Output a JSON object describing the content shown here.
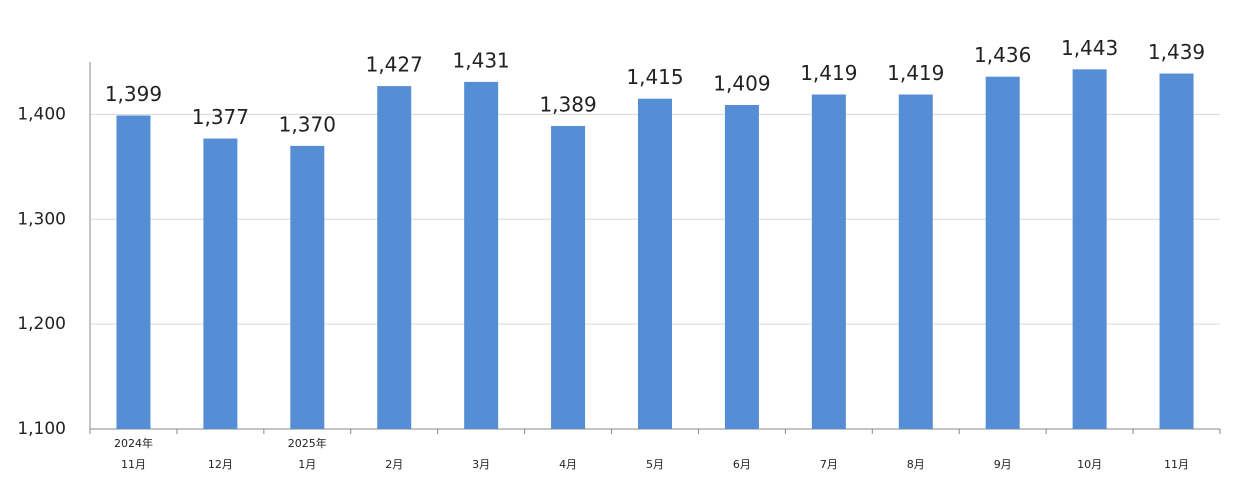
{
  "chart_data": {
    "type": "bar",
    "categories": [
      "11月",
      "12月",
      "1月",
      "2月",
      "3月",
      "4月",
      "5月",
      "6月",
      "7月",
      "8月",
      "9月",
      "10月",
      "11月"
    ],
    "year_labels": [
      "2024年",
      null,
      "2025年",
      null,
      null,
      null,
      null,
      null,
      null,
      null,
      null,
      null,
      null
    ],
    "values": [
      1399,
      1377,
      1370,
      1427,
      1431,
      1389,
      1415,
      1409,
      1419,
      1419,
      1436,
      1443,
      1439
    ],
    "value_labels": [
      "1,399",
      "1,377",
      "1,370",
      "1,427",
      "1,431",
      "1,389",
      "1,415",
      "1,409",
      "1,419",
      "1,419",
      "1,436",
      "1,443",
      "1,439"
    ],
    "color": "#558ed5",
    "ylim": [
      1100,
      1450
    ],
    "yticks": [
      {
        "value": 1100,
        "label": "1,100"
      },
      {
        "value": 1200,
        "label": "1,200"
      },
      {
        "value": 1300,
        "label": "1,300"
      },
      {
        "value": 1400,
        "label": "1,400"
      }
    ],
    "grid": true
  }
}
